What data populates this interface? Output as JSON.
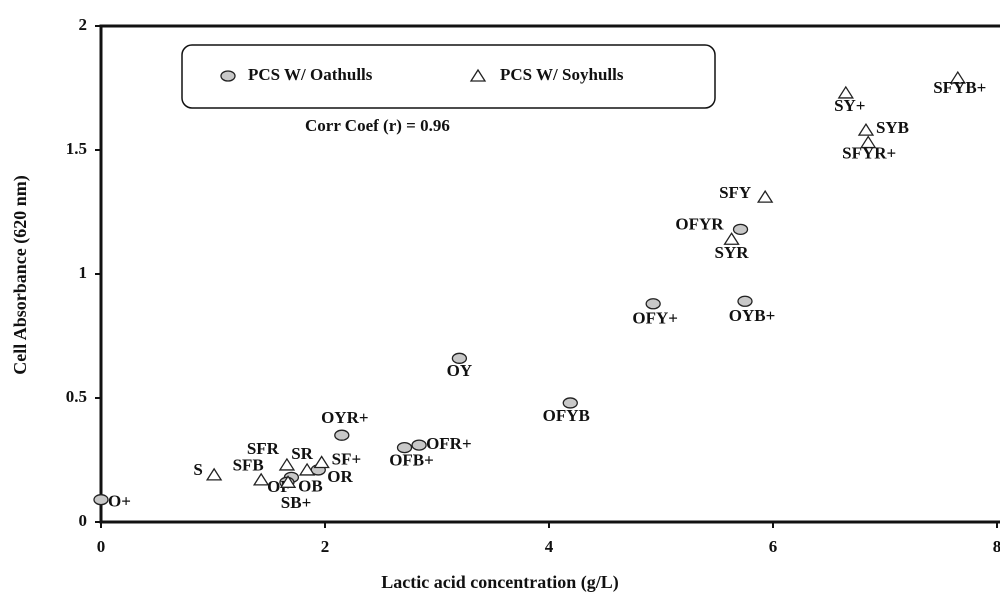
{
  "chart_data": {
    "type": "scatter",
    "xlabel": "Lactic acid concentration (g/L)",
    "ylabel": "Cell Absorbance (620 nm)",
    "annotation": "Corr Coef (r) = 0.96",
    "xlim": [
      0,
      8
    ],
    "xticks": [
      0,
      2,
      4,
      6,
      8
    ],
    "ylim": [
      0,
      2
    ],
    "yticks": [
      0,
      0.5,
      1,
      1.5,
      2
    ],
    "legend": "top-left",
    "series": [
      {
        "name": "PCS W/ Oathulls",
        "marker": "circle",
        "color": "#c8c8c8",
        "x": [
          0.0,
          3.2,
          4.19,
          2.15,
          2.84,
          2.71,
          1.94,
          1.7,
          1.66,
          4.93,
          5.75,
          5.71
        ],
        "values": [
          0.09,
          0.66,
          0.48,
          0.35,
          0.31,
          0.3,
          0.21,
          0.18,
          0.16,
          0.88,
          0.89,
          1.18
        ],
        "labels": [
          "O+",
          "OY",
          "OFYB",
          "OYR+",
          "OFR+",
          "OFB+",
          "OR",
          "OB",
          "OF",
          "OFY+",
          "OYB+",
          "OFYR"
        ]
      },
      {
        "name": "PCS W/ Soyhulls",
        "marker": "triangle",
        "color": "#ffffff",
        "x": [
          1.01,
          1.43,
          1.66,
          1.84,
          1.97,
          1.67,
          5.63,
          5.93,
          6.65,
          6.83,
          7.65,
          6.85
        ],
        "values": [
          0.19,
          0.17,
          0.23,
          0.21,
          0.24,
          0.16,
          1.14,
          1.31,
          1.73,
          1.58,
          1.79,
          1.53
        ],
        "labels": [
          "S",
          "SFB",
          "SFR",
          "SR",
          "SF+",
          "SB+",
          "SYR",
          "SFY",
          "SY+",
          "SYB",
          "SFYB+",
          "SFYR+"
        ]
      }
    ]
  }
}
